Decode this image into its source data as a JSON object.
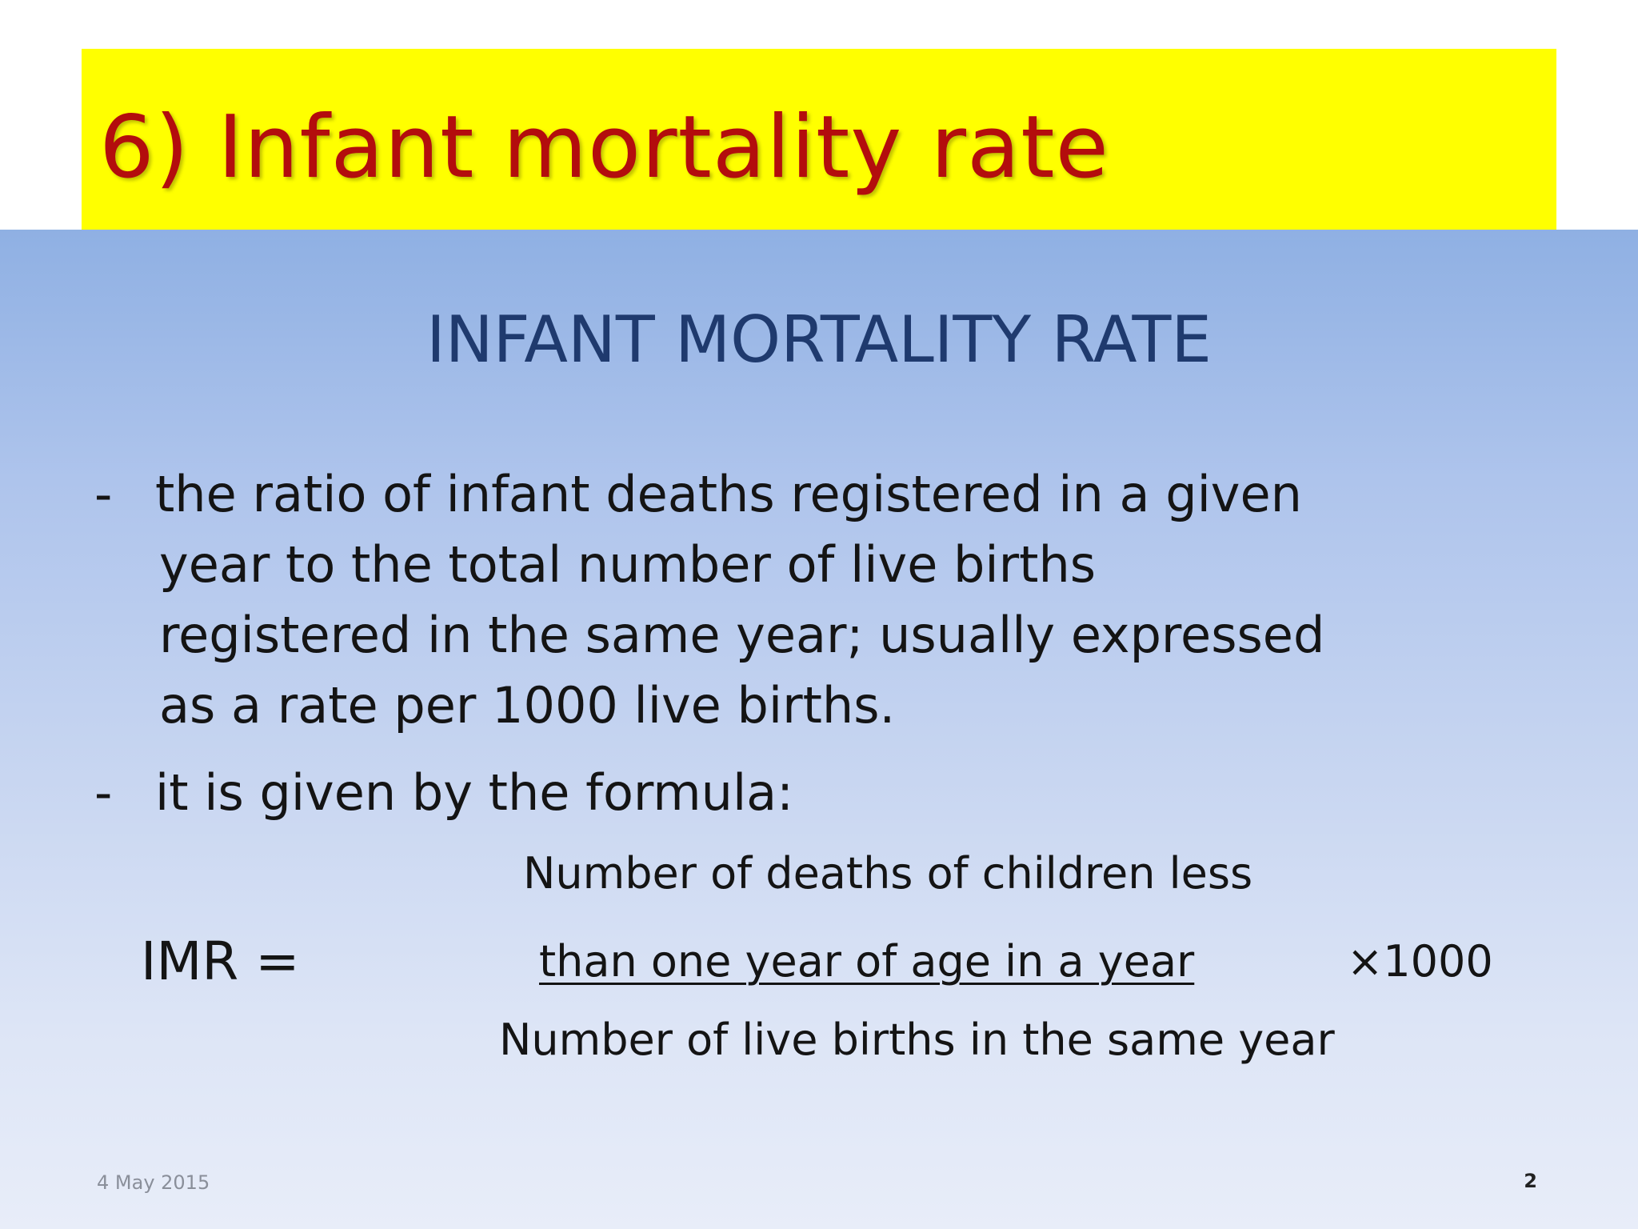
{
  "title_banner": {
    "title": "6) Infant mortality rate"
  },
  "slide": {
    "heading": "INFANT MORTALITY RATE",
    "bullets": [
      {
        "dash": "-",
        "lines": [
          "the ratio of infant deaths registered in a given",
          "year to the total number of live births",
          "registered in the same year; usually expressed",
          "as a rate per 1000 live births."
        ]
      },
      {
        "dash": "-",
        "lines": [
          "it is given by the formula:"
        ]
      }
    ],
    "formula": {
      "label": "IMR  =",
      "numerator_line1": "Number of deaths of children less",
      "numerator_line2": "than one year of age in a year ",
      "multiplier": "×1000",
      "denominator": "Number of live births in the same year"
    },
    "footer": {
      "date": "4 May 2015",
      "page_number": "2"
    }
  },
  "colors": {
    "banner_background": "#ffff00",
    "title_text": "#b30d0d",
    "heading_text": "#1f3a6e",
    "body_text": "#141414"
  }
}
